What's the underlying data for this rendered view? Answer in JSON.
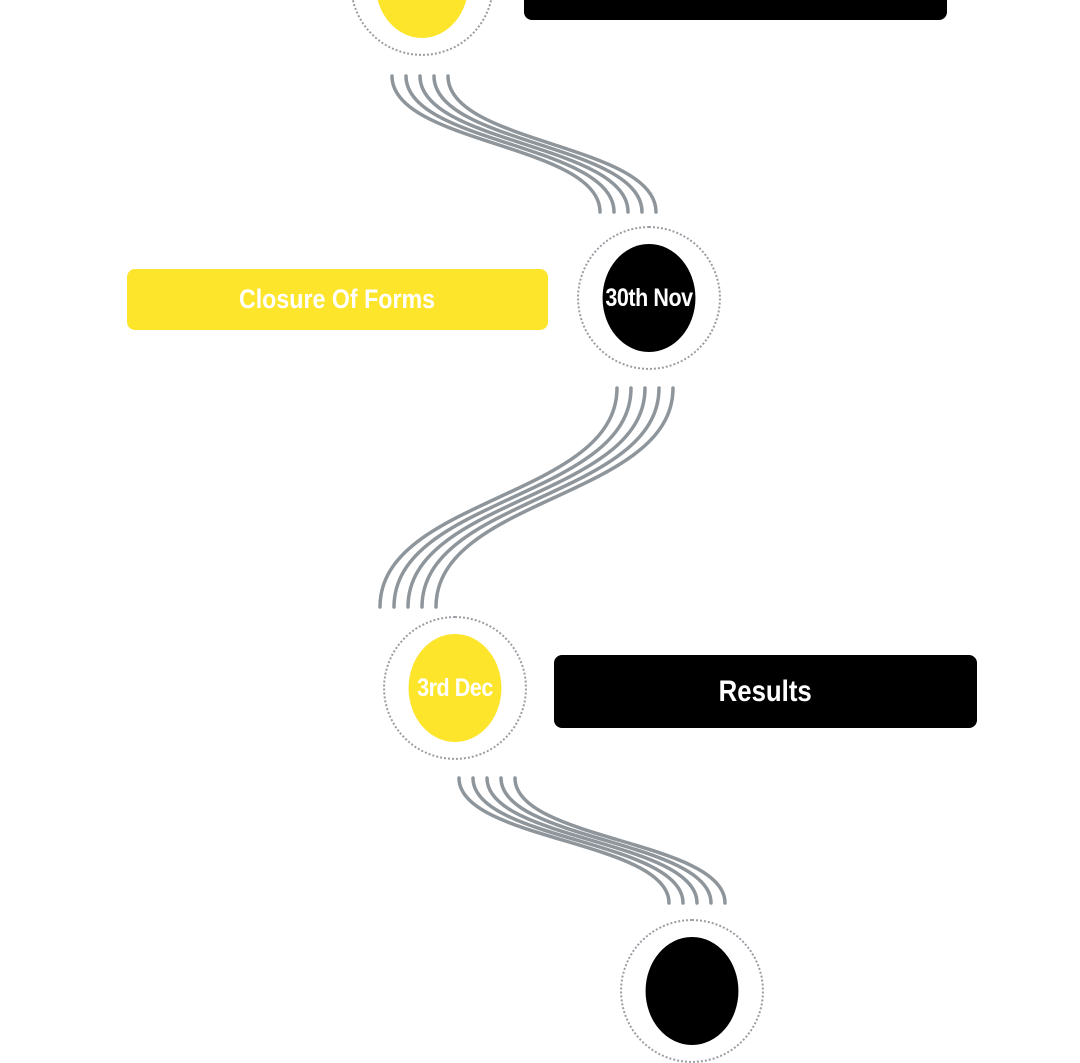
{
  "colors": {
    "accent_yellow": "#fde52c",
    "dark": "#000000",
    "connector": "#8e959b",
    "ring": "#9a9ea3"
  },
  "milestones": [
    {
      "date": "",
      "event": ""
    },
    {
      "date": "30th Nov",
      "event": "Closure Of Forms"
    },
    {
      "date": "3rd Dec",
      "event": "Results"
    },
    {
      "date": "",
      "event": ""
    }
  ]
}
